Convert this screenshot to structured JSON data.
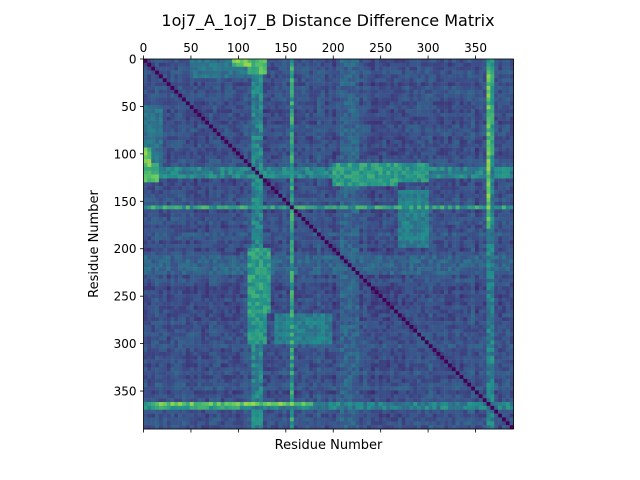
{
  "chart_data": {
    "type": "heatmap",
    "title": "1oj7_A_1oj7_B Distance Difference Matrix",
    "xlabel": "Residue Number",
    "ylabel": "Residue Number",
    "n_residues": 390,
    "xlim": [
      0,
      390
    ],
    "ylim": [
      390,
      0
    ],
    "x_ticks": [
      0,
      50,
      100,
      150,
      200,
      250,
      300,
      350
    ],
    "x_tick_labels": [
      "0",
      "50",
      "100",
      "150",
      "200",
      "250",
      "300",
      "350"
    ],
    "x_tick_label_position": "top",
    "y_ticks": [
      0,
      50,
      100,
      150,
      200,
      250,
      300,
      350
    ],
    "y_tick_labels": [
      "0",
      "50",
      "100",
      "150",
      "200",
      "250",
      "300",
      "350"
    ],
    "colormap": "viridis",
    "symmetric": true,
    "diagonal_value": 0,
    "grid": false,
    "legend": "none",
    "colors": {
      "low": "#440154",
      "mid_low": "#3b528b",
      "mid": "#21918c",
      "mid_high": "#5ec962",
      "high": "#fde725"
    },
    "high_difference_bands": [
      {
        "residues": [
          115,
          125
        ],
        "level": 0.55
      },
      {
        "residues": [
          155,
          160
        ],
        "level": 0.7
      },
      {
        "residues": [
          363,
          368
        ],
        "level": 0.55
      },
      {
        "residues": [
          208,
          226
        ],
        "level": 0.4
      },
      {
        "residues": [
          300,
          303
        ],
        "level": 0.35
      },
      {
        "residues": [
          183,
          186
        ],
        "level": 0.35
      },
      {
        "residues": [
          345,
          350
        ],
        "level": 0.35
      }
    ],
    "high_difference_regions": [
      {
        "rows": [
          110,
          135
        ],
        "cols": [
          200,
          270
        ],
        "level": 0.65
      },
      {
        "rows": [
          95,
          130
        ],
        "cols": [
          0,
          10
        ],
        "level": 0.85
      },
      {
        "rows": [
          200,
          300
        ],
        "cols": [
          110,
          130
        ],
        "level": 0.6
      },
      {
        "rows": [
          0,
          15
        ],
        "cols": [
          110,
          130
        ],
        "level": 0.8
      },
      {
        "rows": [
          10,
          180
        ],
        "cols": [
          360,
          365
        ],
        "level": 0.85
      },
      {
        "rows": [
          50,
          120
        ],
        "cols": [
          0,
          20
        ],
        "level": 0.45
      },
      {
        "rows": [
          140,
          200
        ],
        "cols": [
          270,
          300
        ],
        "level": 0.5
      },
      {
        "rows": [
          360,
          370
        ],
        "cols": [
          0,
          100
        ],
        "level": 0.65
      }
    ]
  }
}
